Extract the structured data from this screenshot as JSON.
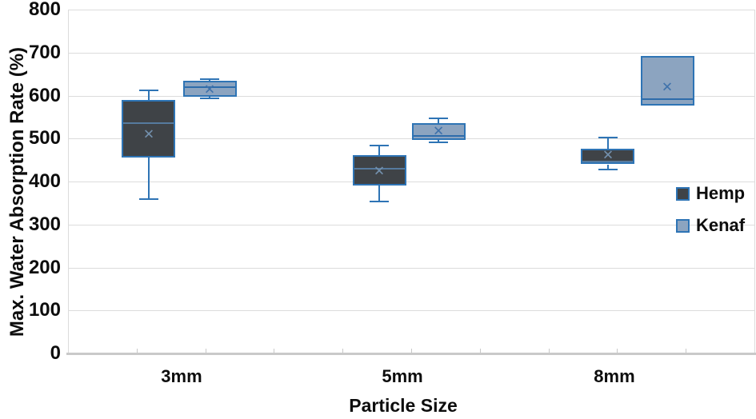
{
  "chart_data": {
    "type": "boxplot",
    "title": "",
    "xlabel": "Particle Size",
    "ylabel": "Max. Water Absorption Rate (%)",
    "ylim": [
      0,
      800
    ],
    "ytick_step": 100,
    "grid": true,
    "legend_position": "right-middle",
    "categories": [
      "3mm",
      "5mm",
      "8mm"
    ],
    "series": [
      {
        "name": "Hemp",
        "fill": "#3f4347",
        "median_color": "#567a9e",
        "mean_color": "#7390ad",
        "boxes": [
          {
            "min": 360,
            "q1": 455,
            "median": 535,
            "q3": 590,
            "max": 612,
            "mean": 510
          },
          {
            "min": 353,
            "q1": 390,
            "median": 430,
            "q3": 462,
            "max": 483,
            "mean": 425
          },
          {
            "min": 428,
            "q1": 440,
            "median": 446,
            "q3": 477,
            "max": 502,
            "mean": 461
          }
        ]
      },
      {
        "name": "Kenaf",
        "fill": "#8ca4c0",
        "median_color": "#2e6cab",
        "mean_color": "#3f72ab",
        "boxes": [
          {
            "min": 593,
            "q1": 598,
            "median": 620,
            "q3": 634,
            "max": 639,
            "mean": 614
          },
          {
            "min": 491,
            "q1": 497,
            "median": 506,
            "q3": 536,
            "max": 547,
            "mean": 517
          },
          {
            "min": 576,
            "q1": 576,
            "median": 591,
            "q3": 692,
            "max": 692,
            "mean": 619
          }
        ]
      }
    ],
    "colors": {
      "border": "#2e74b5",
      "whisker": "#2e74b5",
      "gridline": "#dcdcdc",
      "axis_line": "#c9c9c9",
      "text": "#0d0d0d"
    },
    "mean_marker_glyph": "✕"
  }
}
